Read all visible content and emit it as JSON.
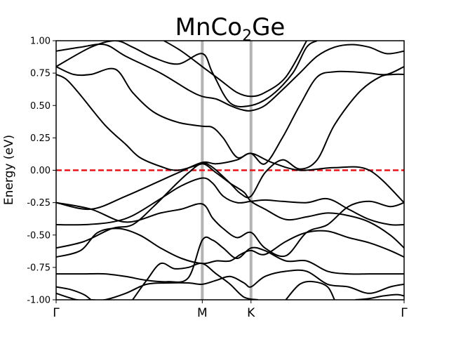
{
  "chart_data": {
    "type": "line",
    "title": "MnCo",
    "title_subscript": "2",
    "title_suffix": "Ge",
    "xlabel": "",
    "ylabel": "Energy (eV)",
    "ylim": [
      -1.0,
      1.0
    ],
    "yticks": [
      "1.00",
      "0.75",
      "0.50",
      "0.25",
      "0.00",
      "-0.25",
      "-0.50",
      "-0.75",
      "-1.00"
    ],
    "ytick_values": [
      1.0,
      0.75,
      0.5,
      0.25,
      0.0,
      -0.25,
      -0.5,
      -0.75,
      -1.0
    ],
    "kpoints": [
      {
        "label": "Γ",
        "x": 0.0
      },
      {
        "label": "M",
        "x": 0.42
      },
      {
        "label": "K",
        "x": 0.56
      },
      {
        "label": "Γ",
        "x": 1.0
      }
    ],
    "xlim": [
      0.0,
      1.0
    ],
    "fermi_level": 0.0,
    "grid": false,
    "colors": {
      "bands": "#000000",
      "fermi": "#e8141b",
      "kline": "#b3b3b3"
    },
    "bands": [
      {
        "x": [
          0.0,
          0.03,
          0.07,
          0.14,
          0.2,
          0.24,
          0.3,
          0.35,
          0.42,
          0.44,
          0.46,
          0.5,
          0.53,
          0.56,
          0.6,
          0.65,
          0.7,
          0.75,
          0.8,
          0.87,
          0.93,
          0.97,
          1.0
        ],
        "y": [
          0.74,
          0.7,
          0.58,
          0.35,
          0.2,
          0.1,
          0.03,
          0.0,
          0.05,
          0.04,
          0.0,
          -0.1,
          -0.18,
          -0.2,
          -0.02,
          0.08,
          0.01,
          0.08,
          0.35,
          0.6,
          0.72,
          0.74,
          0.74
        ]
      },
      {
        "x": [
          0.0,
          0.1,
          0.2,
          0.3,
          0.35,
          0.42,
          0.46,
          0.52,
          0.56,
          0.62,
          0.7,
          0.8,
          0.9,
          1.0
        ],
        "y": [
          -0.25,
          -0.3,
          -0.2,
          -0.08,
          -0.02,
          0.06,
          0.05,
          0.08,
          0.13,
          0.06,
          0.0,
          0.02,
          0.0,
          -0.25
        ]
      },
      {
        "x": [
          0.0,
          0.05,
          0.1,
          0.17,
          0.22,
          0.28,
          0.35,
          0.42,
          0.45,
          0.48,
          0.52,
          0.56,
          0.6,
          0.65,
          0.7,
          0.75,
          0.8,
          0.85,
          0.9,
          0.95,
          1.0
        ],
        "y": [
          0.8,
          0.74,
          0.74,
          0.78,
          0.6,
          0.45,
          0.37,
          0.34,
          0.33,
          0.25,
          0.1,
          0.13,
          0.05,
          0.25,
          0.5,
          0.72,
          0.76,
          0.76,
          0.75,
          0.74,
          0.8
        ]
      },
      {
        "x": [
          0.0,
          0.07,
          0.14,
          0.2,
          0.3,
          0.38,
          0.42,
          0.46,
          0.5,
          0.53,
          0.56,
          0.6,
          0.65,
          0.7,
          0.75,
          0.8,
          0.85,
          0.9,
          0.95,
          1.0
        ],
        "y": [
          0.92,
          0.95,
          0.97,
          0.88,
          0.75,
          0.62,
          0.57,
          0.55,
          0.5,
          0.47,
          0.46,
          0.5,
          0.62,
          0.75,
          0.88,
          0.95,
          0.97,
          0.95,
          0.9,
          0.92
        ]
      },
      {
        "x": [
          0.0,
          0.1,
          0.17,
          0.22,
          0.28,
          0.35,
          0.42,
          0.45,
          0.5,
          0.56,
          0.62,
          0.68,
          0.72,
          0.75
        ],
        "y": [
          0.8,
          0.95,
          1.0,
          0.95,
          0.87,
          0.82,
          0.9,
          0.75,
          0.52,
          0.5,
          0.58,
          0.75,
          0.95,
          1.0
        ]
      },
      {
        "x": [
          0.31,
          0.36,
          0.42,
          0.47,
          0.52,
          0.56,
          0.6,
          0.66,
          0.72
        ],
        "y": [
          1.0,
          0.92,
          0.8,
          0.7,
          0.6,
          0.57,
          0.6,
          0.72,
          1.0
        ]
      },
      {
        "x": [
          0.0,
          0.1,
          0.2,
          0.3,
          0.36,
          0.42,
          0.45,
          0.48,
          0.52,
          0.56,
          0.6,
          0.66,
          0.72,
          0.78,
          0.84,
          0.9,
          0.96,
          1.0
        ],
        "y": [
          -0.25,
          -0.3,
          -0.4,
          -0.33,
          -0.3,
          -0.26,
          -0.37,
          -0.45,
          -0.52,
          -0.48,
          -0.6,
          -0.66,
          -0.48,
          -0.42,
          -0.28,
          -0.24,
          -0.28,
          -0.25
        ]
      },
      {
        "x": [
          0.0,
          0.08,
          0.16,
          0.22,
          0.3,
          0.36,
          0.42,
          0.45,
          0.48,
          0.52,
          0.56,
          0.6,
          0.65,
          0.72,
          0.78,
          0.84,
          0.9,
          0.96,
          1.0
        ],
        "y": [
          -0.42,
          -0.42,
          -0.4,
          -0.35,
          -0.22,
          -0.12,
          -0.06,
          -0.1,
          -0.2,
          -0.25,
          -0.24,
          -0.23,
          -0.24,
          -0.25,
          -0.22,
          -0.3,
          -0.38,
          -0.42,
          -0.42
        ]
      },
      {
        "x": [
          0.0,
          0.08,
          0.16,
          0.22,
          0.28,
          0.34,
          0.38,
          0.42,
          0.46,
          0.5,
          0.54,
          0.56,
          0.6,
          0.66,
          0.72,
          0.78,
          0.84,
          0.9,
          0.96,
          1.0
        ],
        "y": [
          -0.6,
          -0.55,
          -0.45,
          -0.42,
          -0.28,
          -0.12,
          -0.02,
          0.05,
          -0.02,
          -0.1,
          -0.17,
          -0.24,
          -0.3,
          -0.38,
          -0.36,
          -0.33,
          -0.35,
          -0.4,
          -0.5,
          -0.6
        ]
      },
      {
        "x": [
          0.0,
          0.07,
          0.12,
          0.18,
          0.24,
          0.3,
          0.36,
          0.42,
          0.46,
          0.5,
          0.53,
          0.56,
          0.6,
          0.66,
          0.72,
          0.78,
          0.84,
          0.9,
          0.96,
          1.0
        ],
        "y": [
          -0.67,
          -0.62,
          -0.48,
          -0.45,
          -0.5,
          -0.6,
          -0.68,
          -0.72,
          -0.7,
          -0.7,
          -0.65,
          -0.62,
          -0.65,
          -0.55,
          -0.48,
          -0.47,
          -0.52,
          -0.56,
          -0.62,
          -0.67
        ]
      },
      {
        "x": [
          0.0,
          0.08,
          0.14,
          0.2,
          0.26,
          0.32,
          0.38,
          0.42,
          0.45,
          0.48,
          0.52,
          0.56,
          0.6,
          0.66,
          0.72,
          0.78,
          0.84,
          0.9,
          0.96,
          1.0
        ],
        "y": [
          -0.8,
          -0.8,
          -0.8,
          -0.82,
          -0.85,
          -0.86,
          -0.83,
          -0.54,
          -0.54,
          -0.6,
          -0.68,
          -0.6,
          -0.62,
          -0.7,
          -0.7,
          -0.78,
          -0.8,
          -0.8,
          -0.8,
          -0.8
        ]
      },
      {
        "x": [
          0.0,
          0.06,
          0.1,
          0.14,
          0.2,
          0.26,
          0.32,
          0.38,
          0.42,
          0.46,
          0.5,
          0.54,
          0.56,
          0.6,
          0.66,
          0.72,
          0.78,
          0.84,
          0.9,
          0.96,
          1.0
        ],
        "y": [
          -0.95,
          -1.0,
          -1.0,
          -1.0,
          -0.95,
          -0.88,
          -0.87,
          -0.87,
          -0.88,
          -0.85,
          -0.82,
          -0.87,
          -0.9,
          -0.82,
          -0.78,
          -0.78,
          -0.88,
          -0.9,
          -0.95,
          -0.9,
          -0.88
        ]
      },
      {
        "x": [
          0.0,
          0.04,
          0.08,
          0.1
        ],
        "y": [
          -0.9,
          -0.92,
          -0.96,
          -1.0
        ]
      },
      {
        "x": [
          0.22,
          0.26,
          0.3,
          0.34,
          0.38,
          0.42,
          0.46,
          0.5,
          0.54,
          0.58
        ],
        "y": [
          -1.0,
          -0.85,
          -0.72,
          -0.76,
          -0.75,
          -0.72,
          -0.8,
          -0.88,
          -0.98,
          -1.0
        ]
      },
      {
        "x": [
          0.66,
          0.7,
          0.74,
          0.78,
          0.8
        ],
        "y": [
          -1.0,
          -0.88,
          -0.86,
          -0.9,
          -1.0
        ]
      },
      {
        "x": [
          0.86,
          0.9,
          0.94,
          0.98,
          1.0
        ],
        "y": [
          -1.0,
          -0.99,
          -0.97,
          -0.96,
          -0.97
        ]
      }
    ]
  }
}
